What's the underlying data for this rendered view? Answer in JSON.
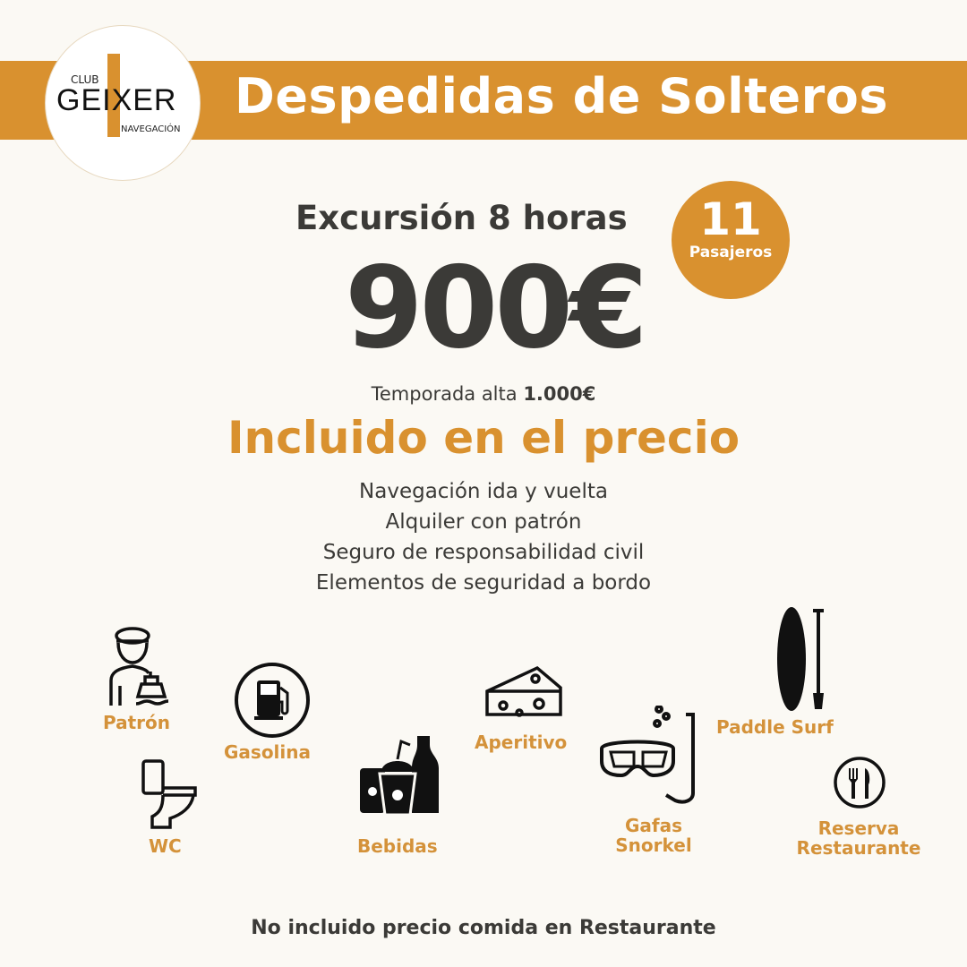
{
  "brand": {
    "club": "CLUB",
    "name": "GEIXER",
    "subtitle": "NAVEGACIÓN",
    "color": "#d9912f"
  },
  "header": {
    "title": "Despedidas de Solteros"
  },
  "offer": {
    "duration": "Excursión 8 horas",
    "price": "900€",
    "season_label": "Temporada alta",
    "season_price": "1.000€",
    "passengers_count": "11",
    "passengers_label": "Pasajeros"
  },
  "included": {
    "title": "Incluido en el precio",
    "items": [
      "Navegación ida y vuelta",
      "Alquiler con patrón",
      "Seguro de responsabilidad civil",
      "Elementos de seguridad a bordo"
    ]
  },
  "features": [
    {
      "label": "Patrón",
      "icon": "captain-icon"
    },
    {
      "label": "Gasolina",
      "icon": "fuel-pump-icon"
    },
    {
      "label": "Aperitivo",
      "icon": "cheese-icon"
    },
    {
      "label": "Paddle Surf",
      "icon": "paddle-board-icon"
    },
    {
      "label": "WC",
      "icon": "toilet-icon"
    },
    {
      "label": "Bebidas",
      "icon": "drinks-icon"
    },
    {
      "label": "Gafas Snorkel",
      "icon": "snorkel-mask-icon"
    },
    {
      "label": "Reserva Restaurante",
      "icon": "restaurant-icon"
    }
  ],
  "footer": {
    "note": "No incluido precio comida en Restaurante"
  }
}
